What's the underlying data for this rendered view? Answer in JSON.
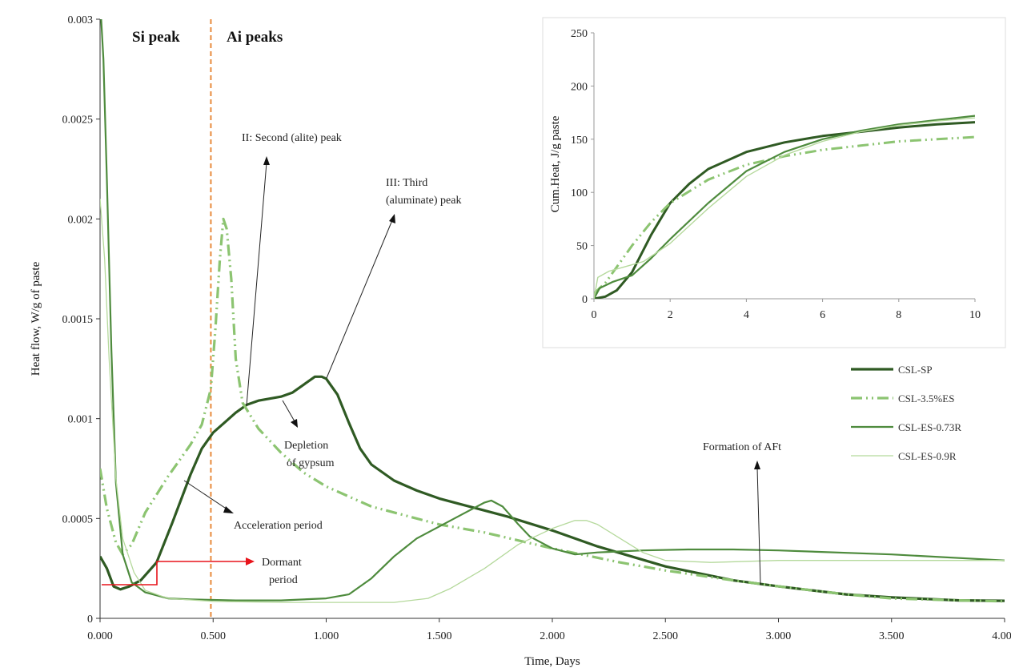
{
  "chart_data": [
    {
      "type": "line",
      "xlabel": "Time, Days",
      "ylabel": "Heat flow, W/g of paste",
      "xlim": [
        0,
        4
      ],
      "ylim": [
        0,
        0.003
      ],
      "x_ticks": [
        "0.000",
        "0.500",
        "1.000",
        "1.500",
        "2.000",
        "2.500",
        "3.000",
        "3.500",
        "4.000"
      ],
      "y_ticks": [
        "0",
        "0.0005",
        "0.001",
        "0.0015",
        "0.002",
        "0.0025",
        "0.003"
      ],
      "legend_position": "right",
      "grid": false,
      "divider_x": 0.49,
      "series": [
        {
          "name": "CSL-SP",
          "color": "#2f5a23",
          "dash": "solid",
          "points": [
            [
              0,
              0.00031
            ],
            [
              0.03,
              0.00025
            ],
            [
              0.06,
              0.00016
            ],
            [
              0.09,
              0.000145
            ],
            [
              0.13,
              0.00016
            ],
            [
              0.18,
              0.00019
            ],
            [
              0.25,
              0.00028
            ],
            [
              0.32,
              0.00048
            ],
            [
              0.4,
              0.00072
            ],
            [
              0.45,
              0.00085
            ],
            [
              0.5,
              0.00093
            ],
            [
              0.55,
              0.00098
            ],
            [
              0.6,
              0.00103
            ],
            [
              0.65,
              0.00107
            ],
            [
              0.7,
              0.00109
            ],
            [
              0.75,
              0.0011
            ],
            [
              0.8,
              0.00111
            ],
            [
              0.85,
              0.00113
            ],
            [
              0.9,
              0.00117
            ],
            [
              0.95,
              0.00121
            ],
            [
              0.98,
              0.00121
            ],
            [
              1.0,
              0.0012
            ],
            [
              1.05,
              0.00112
            ],
            [
              1.1,
              0.00098
            ],
            [
              1.15,
              0.00085
            ],
            [
              1.2,
              0.00077
            ],
            [
              1.3,
              0.00069
            ],
            [
              1.4,
              0.00064
            ],
            [
              1.5,
              0.0006
            ],
            [
              1.6,
              0.00057
            ],
            [
              1.8,
              0.00051
            ],
            [
              2.0,
              0.00044
            ],
            [
              2.2,
              0.00036
            ],
            [
              2.5,
              0.00026
            ],
            [
              2.8,
              0.00019
            ],
            [
              3.0,
              0.00016
            ],
            [
              3.3,
              0.00012
            ],
            [
              3.5,
              0.000105
            ],
            [
              3.8,
              9e-05
            ],
            [
              4.0,
              8.8e-05
            ]
          ]
        },
        {
          "name": "CSL-3.5%ES",
          "color": "#8cc471",
          "dash": "dashdot",
          "points": [
            [
              0,
              0.00075
            ],
            [
              0.03,
              0.00055
            ],
            [
              0.07,
              0.00038
            ],
            [
              0.1,
              0.00032
            ],
            [
              0.14,
              0.00037
            ],
            [
              0.2,
              0.00053
            ],
            [
              0.3,
              0.00071
            ],
            [
              0.4,
              0.00087
            ],
            [
              0.45,
              0.00097
            ],
            [
              0.49,
              0.00115
            ],
            [
              0.51,
              0.00145
            ],
            [
              0.53,
              0.0018
            ],
            [
              0.545,
              0.002
            ],
            [
              0.56,
              0.00195
            ],
            [
              0.58,
              0.0017
            ],
            [
              0.6,
              0.0013
            ],
            [
              0.63,
              0.00108
            ],
            [
              0.7,
              0.00095
            ],
            [
              0.8,
              0.00083
            ],
            [
              0.9,
              0.00073
            ],
            [
              1.0,
              0.00066
            ],
            [
              1.2,
              0.00056
            ],
            [
              1.5,
              0.00047
            ],
            [
              1.7,
              0.00043
            ],
            [
              2.0,
              0.00035
            ],
            [
              2.3,
              0.00028
            ],
            [
              2.5,
              0.00024
            ],
            [
              2.8,
              0.00019
            ],
            [
              3.0,
              0.00016
            ],
            [
              3.3,
              0.00012
            ],
            [
              3.5,
              0.0001
            ],
            [
              3.8,
              9e-05
            ],
            [
              4.0,
              8.5e-05
            ]
          ]
        },
        {
          "name": "CSL-ES-0.73R",
          "color": "#4e8b3d",
          "dash": "solid",
          "points": [
            [
              0,
              0.0031
            ],
            [
              0.015,
              0.0028
            ],
            [
              0.03,
              0.0022
            ],
            [
              0.05,
              0.00135
            ],
            [
              0.07,
              0.00068
            ],
            [
              0.1,
              0.00032
            ],
            [
              0.14,
              0.00018
            ],
            [
              0.2,
              0.00013
            ],
            [
              0.3,
              0.0001
            ],
            [
              0.4,
              9.5e-05
            ],
            [
              0.6,
              9e-05
            ],
            [
              0.8,
              9e-05
            ],
            [
              1.0,
              0.0001
            ],
            [
              1.1,
              0.00012
            ],
            [
              1.2,
              0.0002
            ],
            [
              1.3,
              0.00031
            ],
            [
              1.4,
              0.0004
            ],
            [
              1.5,
              0.00046
            ],
            [
              1.6,
              0.00052
            ],
            [
              1.7,
              0.00058
            ],
            [
              1.73,
              0.00059
            ],
            [
              1.78,
              0.00056
            ],
            [
              1.85,
              0.00047
            ],
            [
              1.9,
              0.00041
            ],
            [
              2.0,
              0.00035
            ],
            [
              2.1,
              0.00032
            ],
            [
              2.2,
              0.00033
            ],
            [
              2.4,
              0.00034
            ],
            [
              2.6,
              0.000345
            ],
            [
              2.8,
              0.000345
            ],
            [
              3.0,
              0.00034
            ],
            [
              3.5,
              0.00032
            ],
            [
              4.0,
              0.00029
            ]
          ]
        },
        {
          "name": "CSL-ES-0.9R",
          "color": "#b5d99c",
          "dash": "solid",
          "points": [
            [
              0,
              0.0021
            ],
            [
              0.02,
              0.0018
            ],
            [
              0.04,
              0.0013
            ],
            [
              0.07,
              0.0007
            ],
            [
              0.1,
              0.0004
            ],
            [
              0.15,
              0.00023
            ],
            [
              0.2,
              0.00014
            ],
            [
              0.3,
              0.0001
            ],
            [
              0.5,
              8.5e-05
            ],
            [
              0.8,
              8e-05
            ],
            [
              1.0,
              8e-05
            ],
            [
              1.3,
              8e-05
            ],
            [
              1.45,
              0.0001
            ],
            [
              1.55,
              0.00015
            ],
            [
              1.7,
              0.00025
            ],
            [
              1.85,
              0.00037
            ],
            [
              2.0,
              0.00045
            ],
            [
              2.1,
              0.00049
            ],
            [
              2.15,
              0.00049
            ],
            [
              2.2,
              0.00047
            ],
            [
              2.3,
              0.0004
            ],
            [
              2.4,
              0.00033
            ],
            [
              2.5,
              0.00029
            ],
            [
              2.7,
              0.00028
            ],
            [
              3.0,
              0.00029
            ],
            [
              3.5,
              0.00029
            ],
            [
              4.0,
              0.00029
            ]
          ]
        }
      ],
      "annotations": {
        "si_peak": "Si peak",
        "ai_peaks": "Ai peaks",
        "second_peak": "II: Second (alite) peak",
        "third_peak_line1": "III: Third",
        "third_peak_line2": "(aluminate) peak",
        "depletion_line1": "Depletion",
        "depletion_line2": "of gypsum",
        "acceleration": "Acceleration period",
        "formation": "Formation of AFt",
        "dormant_line1": "Dormant",
        "dormant_line2": "period",
        "dormant_color": "#e8141b",
        "divider_color": "#e88a3c"
      }
    },
    {
      "type": "line",
      "ylabel": "Cum.Heat, J/g paste",
      "xlim": [
        0,
        10
      ],
      "ylim": [
        0,
        250
      ],
      "x_ticks": [
        "0",
        "2",
        "4",
        "6",
        "8",
        "10"
      ],
      "y_ticks": [
        "0",
        "50",
        "100",
        "150",
        "200",
        "250"
      ],
      "series": [
        {
          "name": "CSL-SP",
          "color": "#2f5a23",
          "dash": "solid",
          "points": [
            [
              0,
              0
            ],
            [
              0.3,
              2
            ],
            [
              0.6,
              8
            ],
            [
              1.0,
              25
            ],
            [
              1.5,
              60
            ],
            [
              2.0,
              90
            ],
            [
              2.5,
              108
            ],
            [
              3.0,
              122
            ],
            [
              4.0,
              138
            ],
            [
              5.0,
              147
            ],
            [
              6.0,
              153
            ],
            [
              7.0,
              157
            ],
            [
              8.0,
              161
            ],
            [
              9.0,
              164
            ],
            [
              10,
              166
            ]
          ]
        },
        {
          "name": "CSL-3.5%ES",
          "color": "#8cc471",
          "dash": "dashdot",
          "points": [
            [
              0,
              5
            ],
            [
              0.3,
              15
            ],
            [
              0.6,
              30
            ],
            [
              1.0,
              50
            ],
            [
              1.5,
              72
            ],
            [
              2.0,
              90
            ],
            [
              3.0,
              112
            ],
            [
              4.0,
              126
            ],
            [
              5.0,
              134
            ],
            [
              6.0,
              140
            ],
            [
              7.0,
              144
            ],
            [
              8.0,
              148
            ],
            [
              9.0,
              150
            ],
            [
              10,
              152
            ]
          ]
        },
        {
          "name": "CSL-ES-0.73R",
          "color": "#4e8b3d",
          "dash": "solid",
          "points": [
            [
              0,
              0
            ],
            [
              0.15,
              10
            ],
            [
              0.5,
              16
            ],
            [
              1.0,
              22
            ],
            [
              1.5,
              38
            ],
            [
              2.0,
              56
            ],
            [
              3.0,
              90
            ],
            [
              4.0,
              120
            ],
            [
              5.0,
              138
            ],
            [
              6.0,
              150
            ],
            [
              7.0,
              158
            ],
            [
              8.0,
              164
            ],
            [
              9.0,
              168
            ],
            [
              10,
              172
            ]
          ]
        },
        {
          "name": "CSL-ES-0.9R",
          "color": "#b5d99c",
          "dash": "solid",
          "points": [
            [
              0,
              0
            ],
            [
              0.1,
              20
            ],
            [
              0.4,
              26
            ],
            [
              0.8,
              30
            ],
            [
              1.3,
              35
            ],
            [
              2.0,
              52
            ],
            [
              3.0,
              85
            ],
            [
              4.0,
              115
            ],
            [
              5.0,
              135
            ],
            [
              6.0,
              148
            ],
            [
              7.0,
              157
            ],
            [
              8.0,
              163
            ],
            [
              9.0,
              167
            ],
            [
              10,
              170
            ]
          ]
        }
      ]
    }
  ]
}
